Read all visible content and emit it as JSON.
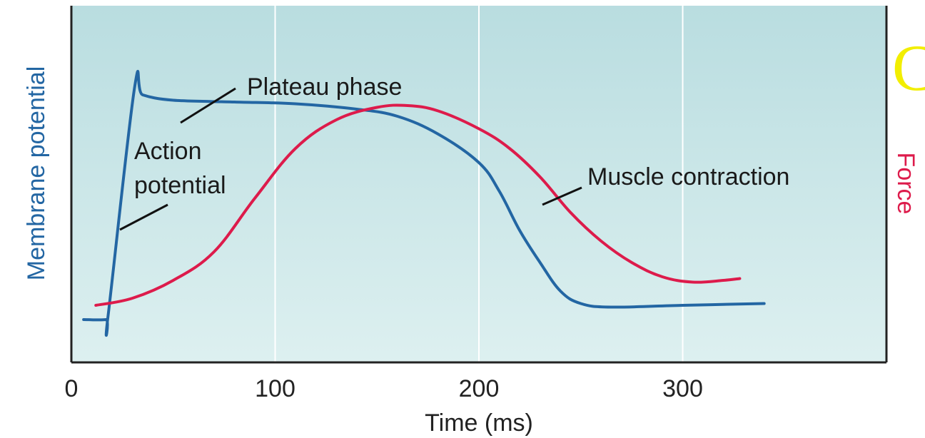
{
  "colors": {
    "plot_bg_top": "#b9dde0",
    "plot_bg_bottom": "#ddf0f0",
    "action_potential": "#2366a3",
    "muscle_contraction": "#dd1b4b",
    "frame": "#222222",
    "grid": "#ffffff",
    "decor_glyph": "#f2ee00"
  },
  "decor": {
    "glyph": "C"
  },
  "chart_data": {
    "type": "line",
    "title": "",
    "xlabel": "Time (ms)",
    "ylabel_left": "Membrane potential",
    "ylabel_right": "Force",
    "xlim": [
      0,
      400
    ],
    "ylim": [
      0,
      1
    ],
    "grid": true,
    "x_ticks": [
      "0",
      "100",
      "200",
      "300"
    ],
    "series": [
      {
        "name": "Action potential",
        "color": "#2366a3",
        "points": [
          [
            6,
            0.12
          ],
          [
            17,
            0.12
          ],
          [
            18,
            0.13
          ],
          [
            31,
            0.77
          ],
          [
            35,
            0.75
          ],
          [
            50,
            0.735
          ],
          [
            80,
            0.73
          ],
          [
            110,
            0.725
          ],
          [
            140,
            0.71
          ],
          [
            160,
            0.69
          ],
          [
            180,
            0.64
          ],
          [
            200,
            0.56
          ],
          [
            210,
            0.48
          ],
          [
            220,
            0.37
          ],
          [
            230,
            0.28
          ],
          [
            240,
            0.2
          ],
          [
            250,
            0.165
          ],
          [
            265,
            0.155
          ],
          [
            300,
            0.16
          ],
          [
            340,
            0.165
          ]
        ]
      },
      {
        "name": "Muscle contraction",
        "color": "#dd1b4b",
        "points": [
          [
            12,
            0.16
          ],
          [
            30,
            0.18
          ],
          [
            50,
            0.23
          ],
          [
            70,
            0.31
          ],
          [
            90,
            0.46
          ],
          [
            110,
            0.6
          ],
          [
            130,
            0.68
          ],
          [
            150,
            0.715
          ],
          [
            165,
            0.72
          ],
          [
            180,
            0.705
          ],
          [
            200,
            0.655
          ],
          [
            215,
            0.6
          ],
          [
            230,
            0.52
          ],
          [
            245,
            0.42
          ],
          [
            260,
            0.34
          ],
          [
            275,
            0.28
          ],
          [
            290,
            0.24
          ],
          [
            305,
            0.225
          ],
          [
            320,
            0.23
          ],
          [
            328,
            0.235
          ]
        ]
      }
    ],
    "annotations": [
      {
        "text": "Plateau phase"
      },
      {
        "text": "Action",
        "line2": "potential"
      },
      {
        "text": "Muscle contraction"
      }
    ]
  }
}
